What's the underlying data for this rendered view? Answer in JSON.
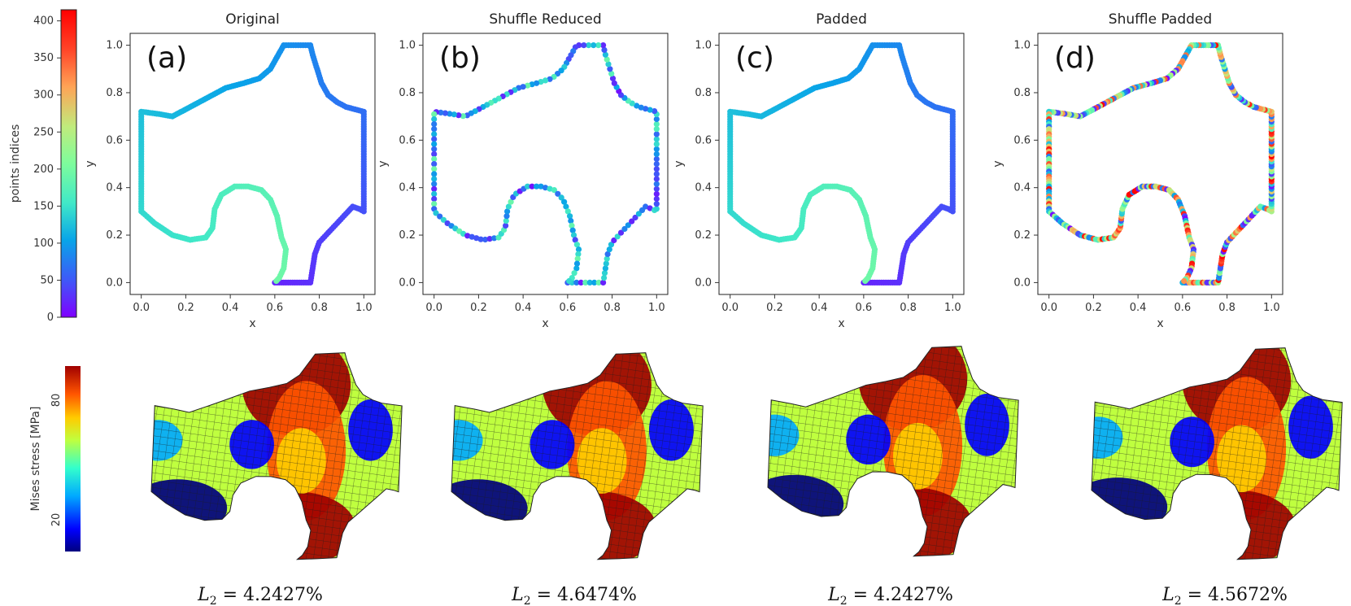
{
  "colorbar_indices": {
    "label": "points indices",
    "ticks": [
      "0",
      "50",
      "100",
      "150",
      "200",
      "250",
      "300",
      "350",
      "400"
    ],
    "range": [
      0,
      415
    ]
  },
  "colorbar_stress": {
    "label": "Mises stress [MPa]",
    "ticks": [
      "20",
      "80"
    ]
  },
  "colors": {
    "cmap_rainbow": [
      "#7f00ff",
      "#3f58f8",
      "#08a4e8",
      "#40e8c8",
      "#7efd9c",
      "#c0eb7c",
      "#ffa356",
      "#ff4528",
      "#ff0000"
    ],
    "cmap_jet": [
      "#00007f",
      "#0000ff",
      "#00aaff",
      "#33ffcc",
      "#bfff3f",
      "#ffcc00",
      "#ff5500",
      "#cc0000",
      "#a00000"
    ]
  },
  "chart_data": [
    {
      "type": "scatter",
      "panel": "(a)",
      "title": "Original",
      "xlabel": "x",
      "ylabel": "y",
      "xlim": [
        -0.05,
        1.05
      ],
      "ylim": [
        -0.05,
        1.05
      ],
      "xticks": [
        "0.0",
        "0.2",
        "0.4",
        "0.6",
        "0.8",
        "1.0"
      ],
      "yticks": [
        "0.0",
        "0.2",
        "0.4",
        "0.6",
        "0.8",
        "1.0"
      ],
      "ordering": "original",
      "l2": "4.2427%"
    },
    {
      "type": "scatter",
      "panel": "(b)",
      "title": "Shuffle Reduced",
      "xlabel": "x",
      "ylabel": "y",
      "xlim": [
        -0.05,
        1.05
      ],
      "ylim": [
        -0.05,
        1.05
      ],
      "xticks": [
        "0.0",
        "0.2",
        "0.4",
        "0.6",
        "0.8",
        "1.0"
      ],
      "yticks": [
        "0.0",
        "0.2",
        "0.4",
        "0.6",
        "0.8",
        "1.0"
      ],
      "ordering": "shuffle_reduced",
      "l2": "4.6474%"
    },
    {
      "type": "scatter",
      "panel": "(c)",
      "title": "Padded",
      "xlabel": "x",
      "ylabel": "y",
      "xlim": [
        -0.05,
        1.05
      ],
      "ylim": [
        -0.05,
        1.05
      ],
      "xticks": [
        "0.0",
        "0.2",
        "0.4",
        "0.6",
        "0.8",
        "1.0"
      ],
      "yticks": [
        "0.0",
        "0.2",
        "0.4",
        "0.6",
        "0.8",
        "1.0"
      ],
      "ordering": "original",
      "l2": "4.2427%"
    },
    {
      "type": "scatter",
      "panel": "(d)",
      "title": "Shuffle Padded",
      "xlabel": "x",
      "ylabel": "y",
      "xlim": [
        -0.05,
        1.05
      ],
      "ylim": [
        -0.05,
        1.05
      ],
      "xticks": [
        "0.0",
        "0.2",
        "0.4",
        "0.6",
        "0.8",
        "1.0"
      ],
      "yticks": [
        "0.0",
        "0.2",
        "0.4",
        "0.6",
        "0.8",
        "1.0"
      ],
      "ordering": "shuffle_padded",
      "l2": "4.5672%"
    }
  ],
  "boundary": {
    "segments": [
      {
        "name": "bottom-left-notch",
        "points": [
          [
            0.6,
            0.0
          ],
          [
            0.64,
            0.0
          ],
          [
            0.68,
            0.0
          ],
          [
            0.72,
            0.0
          ],
          [
            0.76,
            0.0
          ]
        ]
      },
      {
        "name": "right-lower-curve",
        "points": [
          [
            0.76,
            0.0
          ],
          [
            0.77,
            0.06
          ],
          [
            0.78,
            0.12
          ],
          [
            0.8,
            0.17
          ],
          [
            0.84,
            0.21
          ],
          [
            0.88,
            0.25
          ],
          [
            0.92,
            0.29
          ],
          [
            0.95,
            0.32
          ],
          [
            0.98,
            0.31
          ],
          [
            1.0,
            0.3
          ]
        ]
      },
      {
        "name": "right-edge",
        "points": [
          [
            1.0,
            0.3
          ],
          [
            1.0,
            0.72
          ]
        ]
      },
      {
        "name": "right-upper-curve",
        "points": [
          [
            1.0,
            0.72
          ],
          [
            0.96,
            0.73
          ],
          [
            0.92,
            0.74
          ],
          [
            0.88,
            0.76
          ],
          [
            0.84,
            0.79
          ],
          [
            0.81,
            0.84
          ],
          [
            0.79,
            0.9
          ],
          [
            0.77,
            0.96
          ],
          [
            0.76,
            1.0
          ]
        ]
      },
      {
        "name": "top-notch",
        "points": [
          [
            0.76,
            1.0
          ],
          [
            0.64,
            1.0
          ]
        ]
      },
      {
        "name": "left-upper-curve",
        "points": [
          [
            0.64,
            1.0
          ],
          [
            0.61,
            0.95
          ],
          [
            0.58,
            0.9
          ],
          [
            0.53,
            0.86
          ],
          [
            0.46,
            0.84
          ],
          [
            0.38,
            0.82
          ],
          [
            0.3,
            0.78
          ],
          [
            0.22,
            0.74
          ],
          [
            0.14,
            0.7
          ],
          [
            0.08,
            0.71
          ],
          [
            0.0,
            0.72
          ]
        ]
      },
      {
        "name": "left-edge",
        "points": [
          [
            0.0,
            0.72
          ],
          [
            0.0,
            0.3
          ]
        ]
      },
      {
        "name": "left-lower-curve",
        "points": [
          [
            0.0,
            0.3
          ],
          [
            0.06,
            0.25
          ],
          [
            0.14,
            0.2
          ],
          [
            0.22,
            0.18
          ],
          [
            0.29,
            0.19
          ],
          [
            0.32,
            0.23
          ],
          [
            0.33,
            0.31
          ],
          [
            0.36,
            0.37
          ],
          [
            0.42,
            0.405
          ],
          [
            0.48,
            0.405
          ],
          [
            0.54,
            0.39
          ],
          [
            0.58,
            0.35
          ],
          [
            0.61,
            0.28
          ],
          [
            0.63,
            0.19
          ],
          [
            0.65,
            0.14
          ],
          [
            0.64,
            0.06
          ],
          [
            0.62,
            0.02
          ],
          [
            0.6,
            0.0
          ]
        ]
      }
    ]
  },
  "contour_shapes": [
    {
      "panel": "(a)",
      "l2_label": "L₂ = 4.2427%"
    },
    {
      "panel": "(b)",
      "l2_label": "L₂ = 4.6474%"
    },
    {
      "panel": "(c)",
      "l2_label": "L₂ = 4.2427%"
    },
    {
      "panel": "(d)",
      "l2_label": "L₂ = 4.5672%"
    }
  ]
}
